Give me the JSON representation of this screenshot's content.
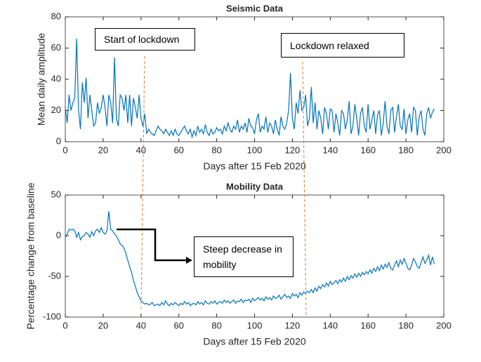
{
  "chart_data": [
    {
      "type": "line",
      "title": "Seismic Data",
      "x_label": "Days after 15 Feb 2020",
      "y_label": "Mean daily amplitude",
      "xlim": [
        0,
        200
      ],
      "xticks": [
        0,
        20,
        40,
        60,
        80,
        100,
        120,
        140,
        160,
        180,
        200
      ],
      "ylim": [
        0,
        80
      ],
      "yticks": [
        0,
        20,
        40,
        60,
        80
      ],
      "annotations": [
        "Start of lockdown",
        "Lockdown relaxed"
      ],
      "x": [
        0,
        1,
        2,
        3,
        4,
        5,
        6,
        7,
        8,
        9,
        10,
        11,
        12,
        13,
        14,
        15,
        16,
        17,
        18,
        19,
        20,
        21,
        22,
        23,
        24,
        25,
        26,
        27,
        28,
        29,
        30,
        31,
        32,
        33,
        34,
        35,
        36,
        37,
        38,
        39,
        40,
        41,
        42,
        43,
        44,
        45,
        46,
        47,
        48,
        49,
        50,
        51,
        52,
        53,
        54,
        55,
        56,
        57,
        58,
        59,
        60,
        61,
        62,
        63,
        64,
        65,
        66,
        67,
        68,
        69,
        70,
        71,
        72,
        73,
        74,
        75,
        76,
        77,
        78,
        79,
        80,
        81,
        82,
        83,
        84,
        85,
        86,
        87,
        88,
        89,
        90,
        91,
        92,
        93,
        94,
        95,
        96,
        97,
        98,
        99,
        100,
        101,
        102,
        103,
        104,
        105,
        106,
        107,
        108,
        109,
        110,
        111,
        112,
        113,
        114,
        115,
        116,
        117,
        118,
        119,
        120,
        121,
        122,
        123,
        124,
        125,
        126,
        127,
        128,
        129,
        130,
        131,
        132,
        133,
        134,
        135,
        136,
        137,
        138,
        139,
        140,
        141,
        142,
        143,
        144,
        145,
        146,
        147,
        148,
        149,
        150,
        151,
        152,
        153,
        154,
        155,
        156,
        157,
        158,
        159,
        160,
        161,
        162,
        163,
        164,
        165,
        166,
        167,
        168,
        169,
        170,
        171,
        172,
        173,
        174,
        175,
        176,
        177,
        178,
        179,
        180,
        181,
        182,
        183,
        184,
        185,
        186,
        187,
        188,
        189,
        190,
        191,
        192,
        193,
        194,
        195
      ],
      "series": [
        {
          "color": "#0072bd",
          "values": [
            22,
            12,
            30,
            20,
            25,
            28,
            66,
            20,
            8,
            38,
            25,
            41,
            15,
            30,
            20,
            10,
            12,
            25,
            18,
            22,
            30,
            22,
            10,
            30,
            25,
            12,
            54,
            15,
            10,
            30,
            28,
            20,
            30,
            12,
            30,
            10,
            28,
            22,
            15,
            30,
            15,
            10,
            18,
            5,
            8,
            6,
            5,
            4,
            7,
            10,
            8,
            7,
            5,
            8,
            6,
            4,
            7,
            4,
            8,
            5,
            4,
            6,
            8,
            10,
            7,
            5,
            8,
            3,
            7,
            4,
            10,
            6,
            8,
            5,
            11,
            6,
            4,
            8,
            5,
            6,
            9,
            7,
            8,
            5,
            10,
            7,
            12,
            8,
            6,
            10,
            8,
            14,
            6,
            10,
            8,
            12,
            6,
            15,
            10,
            9,
            5,
            14,
            18,
            6,
            10,
            8,
            16,
            6,
            12,
            10,
            5,
            14,
            8,
            4,
            16,
            10,
            8,
            12,
            20,
            44,
            15,
            8,
            25,
            18,
            33,
            20,
            22,
            30,
            10,
            15,
            35,
            12,
            25,
            8,
            20,
            15,
            5,
            22,
            18,
            8,
            21,
            20,
            6,
            18,
            12,
            4,
            20,
            18,
            8,
            14,
            26,
            5,
            10,
            24,
            15,
            4,
            18,
            22,
            10,
            6,
            24,
            8,
            14,
            20,
            5,
            17,
            20,
            4,
            12,
            26,
            10,
            5,
            20,
            22,
            6,
            16,
            24,
            10,
            8,
            21,
            5,
            14,
            18,
            6,
            22,
            20,
            4,
            16,
            20,
            8,
            4,
            18,
            22,
            15,
            19,
            21
          ]
        }
      ]
    },
    {
      "type": "line",
      "title": "Mobility Data",
      "x_label": "Days after 15 Feb 2020",
      "y_label": "Percentage change from baseline",
      "xlim": [
        0,
        200
      ],
      "xticks": [
        0,
        20,
        40,
        60,
        80,
        100,
        120,
        140,
        160,
        180,
        200
      ],
      "ylim": [
        -100,
        50
      ],
      "yticks": [
        -100,
        -50,
        0,
        50
      ],
      "annotations": [
        "Steep decrease in mobility"
      ],
      "x": [
        0,
        1,
        2,
        3,
        4,
        5,
        6,
        7,
        8,
        9,
        10,
        11,
        12,
        13,
        14,
        15,
        16,
        17,
        18,
        19,
        20,
        21,
        22,
        23,
        24,
        25,
        26,
        27,
        28,
        29,
        30,
        31,
        32,
        33,
        34,
        35,
        36,
        37,
        38,
        39,
        40,
        41,
        42,
        43,
        44,
        45,
        46,
        47,
        48,
        49,
        50,
        51,
        52,
        53,
        54,
        55,
        56,
        57,
        58,
        59,
        60,
        61,
        62,
        63,
        64,
        65,
        66,
        67,
        68,
        69,
        70,
        71,
        72,
        73,
        74,
        75,
        76,
        77,
        78,
        79,
        80,
        81,
        82,
        83,
        84,
        85,
        86,
        87,
        88,
        89,
        90,
        91,
        92,
        93,
        94,
        95,
        96,
        97,
        98,
        99,
        100,
        101,
        102,
        103,
        104,
        105,
        106,
        107,
        108,
        109,
        110,
        111,
        112,
        113,
        114,
        115,
        116,
        117,
        118,
        119,
        120,
        121,
        122,
        123,
        124,
        125,
        126,
        127,
        128,
        129,
        130,
        131,
        132,
        133,
        134,
        135,
        136,
        137,
        138,
        139,
        140,
        141,
        142,
        143,
        144,
        145,
        146,
        147,
        148,
        149,
        150,
        151,
        152,
        153,
        154,
        155,
        156,
        157,
        158,
        159,
        160,
        161,
        162,
        163,
        164,
        165,
        166,
        167,
        168,
        169,
        170,
        171,
        172,
        173,
        174,
        175,
        176,
        177,
        178,
        179,
        180,
        181,
        182,
        183,
        184,
        185,
        186,
        187,
        188,
        189,
        190,
        191,
        192,
        193,
        194,
        195
      ],
      "series": [
        {
          "color": "#0072bd",
          "values": [
            -2,
            2,
            8,
            7,
            8,
            6,
            -2,
            4,
            -5,
            -1,
            0,
            4,
            2,
            -2,
            5,
            0,
            6,
            8,
            4,
            10,
            4,
            2,
            6,
            30,
            8,
            6,
            2,
            0,
            -5,
            -10,
            -12,
            -15,
            -22,
            -30,
            -38,
            -45,
            -55,
            -62,
            -70,
            -75,
            -80,
            -82,
            -84,
            -83,
            -85,
            -84,
            -82,
            -86,
            -85,
            -84,
            -86,
            -82,
            -85,
            -80,
            -84,
            -86,
            -83,
            -85,
            -82,
            -84,
            -86,
            -83,
            -85,
            -81,
            -84,
            -82,
            -86,
            -84,
            -83,
            -85,
            -81,
            -84,
            -82,
            -85,
            -80,
            -83,
            -84,
            -81,
            -83,
            -80,
            -84,
            -82,
            -81,
            -83,
            -79,
            -82,
            -80,
            -83,
            -81,
            -79,
            -83,
            -80,
            -81,
            -78,
            -82,
            -79,
            -80,
            -78,
            -82,
            -77,
            -80,
            -78,
            -76,
            -79,
            -77,
            -80,
            -75,
            -78,
            -76,
            -79,
            -74,
            -77,
            -76,
            -73,
            -78,
            -75,
            -72,
            -76,
            -74,
            -77,
            -71,
            -74,
            -72,
            -76,
            -70,
            -73,
            -69,
            -71,
            -68,
            -70,
            -66,
            -70,
            -64,
            -68,
            -62,
            -65,
            -60,
            -63,
            -58,
            -62,
            -56,
            -60,
            -58,
            -55,
            -59,
            -54,
            -57,
            -52,
            -56,
            -50,
            -54,
            -49,
            -52,
            -47,
            -51,
            -46,
            -50,
            -45,
            -48,
            -44,
            -47,
            -42,
            -46,
            -40,
            -44,
            -38,
            -43,
            -36,
            -41,
            -35,
            -39,
            -33,
            -40,
            -42,
            -36,
            -31,
            -38,
            -30,
            -35,
            -28,
            -34,
            -40,
            -42,
            -36,
            -28,
            -32,
            -38,
            -40,
            -33,
            -26,
            -34,
            -30,
            -24,
            -36,
            -26,
            -35
          ]
        }
      ]
    }
  ]
}
